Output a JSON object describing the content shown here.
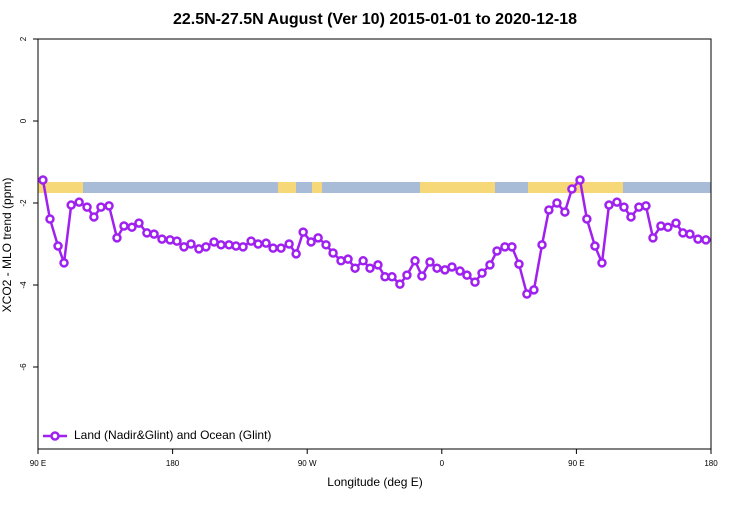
{
  "chart_data": {
    "type": "line",
    "title": "22.5N-27.5N August (Ver 10)   2015-01-01 to 2020-12-18",
    "x_label": "Longitude (deg E)",
    "y_label": "XCO2 - MLO trend (ppm)",
    "x": [
      93.3,
      98,
      103.4,
      107.4,
      112.2,
      117.5,
      122.8,
      127.4,
      132.1,
      137.5,
      142.8,
      147.5,
      152.8,
      157.5,
      162.8,
      167.6,
      172.9,
      178.3,
      182.9,
      187.6,
      192.3,
      197.6,
      202.3,
      207.7,
      212.4,
      217.7,
      222.4,
      227.1,
      232.5,
      237.2,
      242.5,
      247.2,
      252.5,
      257.9,
      262.6,
      267.3,
      272.6,
      277.3,
      282.6,
      287.3,
      292.6,
      297.3,
      302,
      307.4,
      312,
      317.3,
      322,
      326.7,
      332,
      336.7,
      342.1,
      346.7,
      352.1,
      356.8,
      362.1,
      366.8,
      372.2,
      376.8,
      382.2,
      386.9,
      392.2,
      396.9,
      402.2,
      406.9,
      411.6,
      416.9,
      421.6,
      427,
      431.6,
      437,
      442.3,
      447,
      452.4,
      457,
      462.4,
      467.1,
      471.8,
      477.1,
      481.8,
      486.5,
      491.8,
      496.5,
      501.2,
      506.5,
      511.2,
      516.6,
      521.2,
      525.9,
      531.3,
      536.6
    ],
    "series": [
      {
        "name": "Land (Nadir&Glint) and Ocean (Glint)",
        "color": "#a020f0",
        "values": [
          -1.44,
          -2.39,
          -3.05,
          -3.46,
          -2.05,
          -1.98,
          -2.1,
          -2.34,
          -2.1,
          -2.07,
          -2.85,
          -2.56,
          -2.59,
          -2.49,
          -2.73,
          -2.76,
          -2.88,
          -2.9,
          -2.93,
          -3.07,
          -3.0,
          -3.12,
          -3.07,
          -2.95,
          -3.02,
          -3.02,
          -3.05,
          -3.07,
          -2.93,
          -3.0,
          -2.98,
          -3.1,
          -3.1,
          -3.0,
          -3.24,
          -2.71,
          -2.95,
          -2.85,
          -3.02,
          -3.22,
          -3.41,
          -3.37,
          -3.59,
          -3.41,
          -3.59,
          -3.51,
          -3.8,
          -3.8,
          -3.98,
          -3.76,
          -3.41,
          -3.78,
          -3.44,
          -3.59,
          -3.63,
          -3.56,
          -3.66,
          -3.76,
          -3.93,
          -3.71,
          -3.51,
          -3.17,
          -3.07,
          -3.07,
          -3.49,
          -4.22,
          -4.12,
          -3.02,
          -2.17,
          -2.0,
          -2.22,
          -1.66,
          -1.44,
          -2.39,
          -3.05,
          -3.46,
          -2.05,
          -1.98,
          -2.1,
          -2.34,
          -2.1,
          -2.07,
          -2.85,
          -2.56,
          -2.59,
          -2.49,
          -2.73,
          -2.76,
          -2.88,
          -2.9
        ]
      }
    ],
    "xlim": [
      90,
      540
    ],
    "ylim": [
      -8,
      2
    ],
    "xticks": [
      {
        "value": 90,
        "label": "90 E"
      },
      180,
      {
        "value": 270,
        "label": "90 W"
      },
      {
        "value": 360,
        "label": "0"
      },
      {
        "value": 450,
        "label": "90 E"
      },
      {
        "value": 540,
        "label": "180"
      }
    ],
    "yticks": [
      2,
      0,
      -2,
      -4,
      -6
    ],
    "legend": "bottom-left"
  }
}
